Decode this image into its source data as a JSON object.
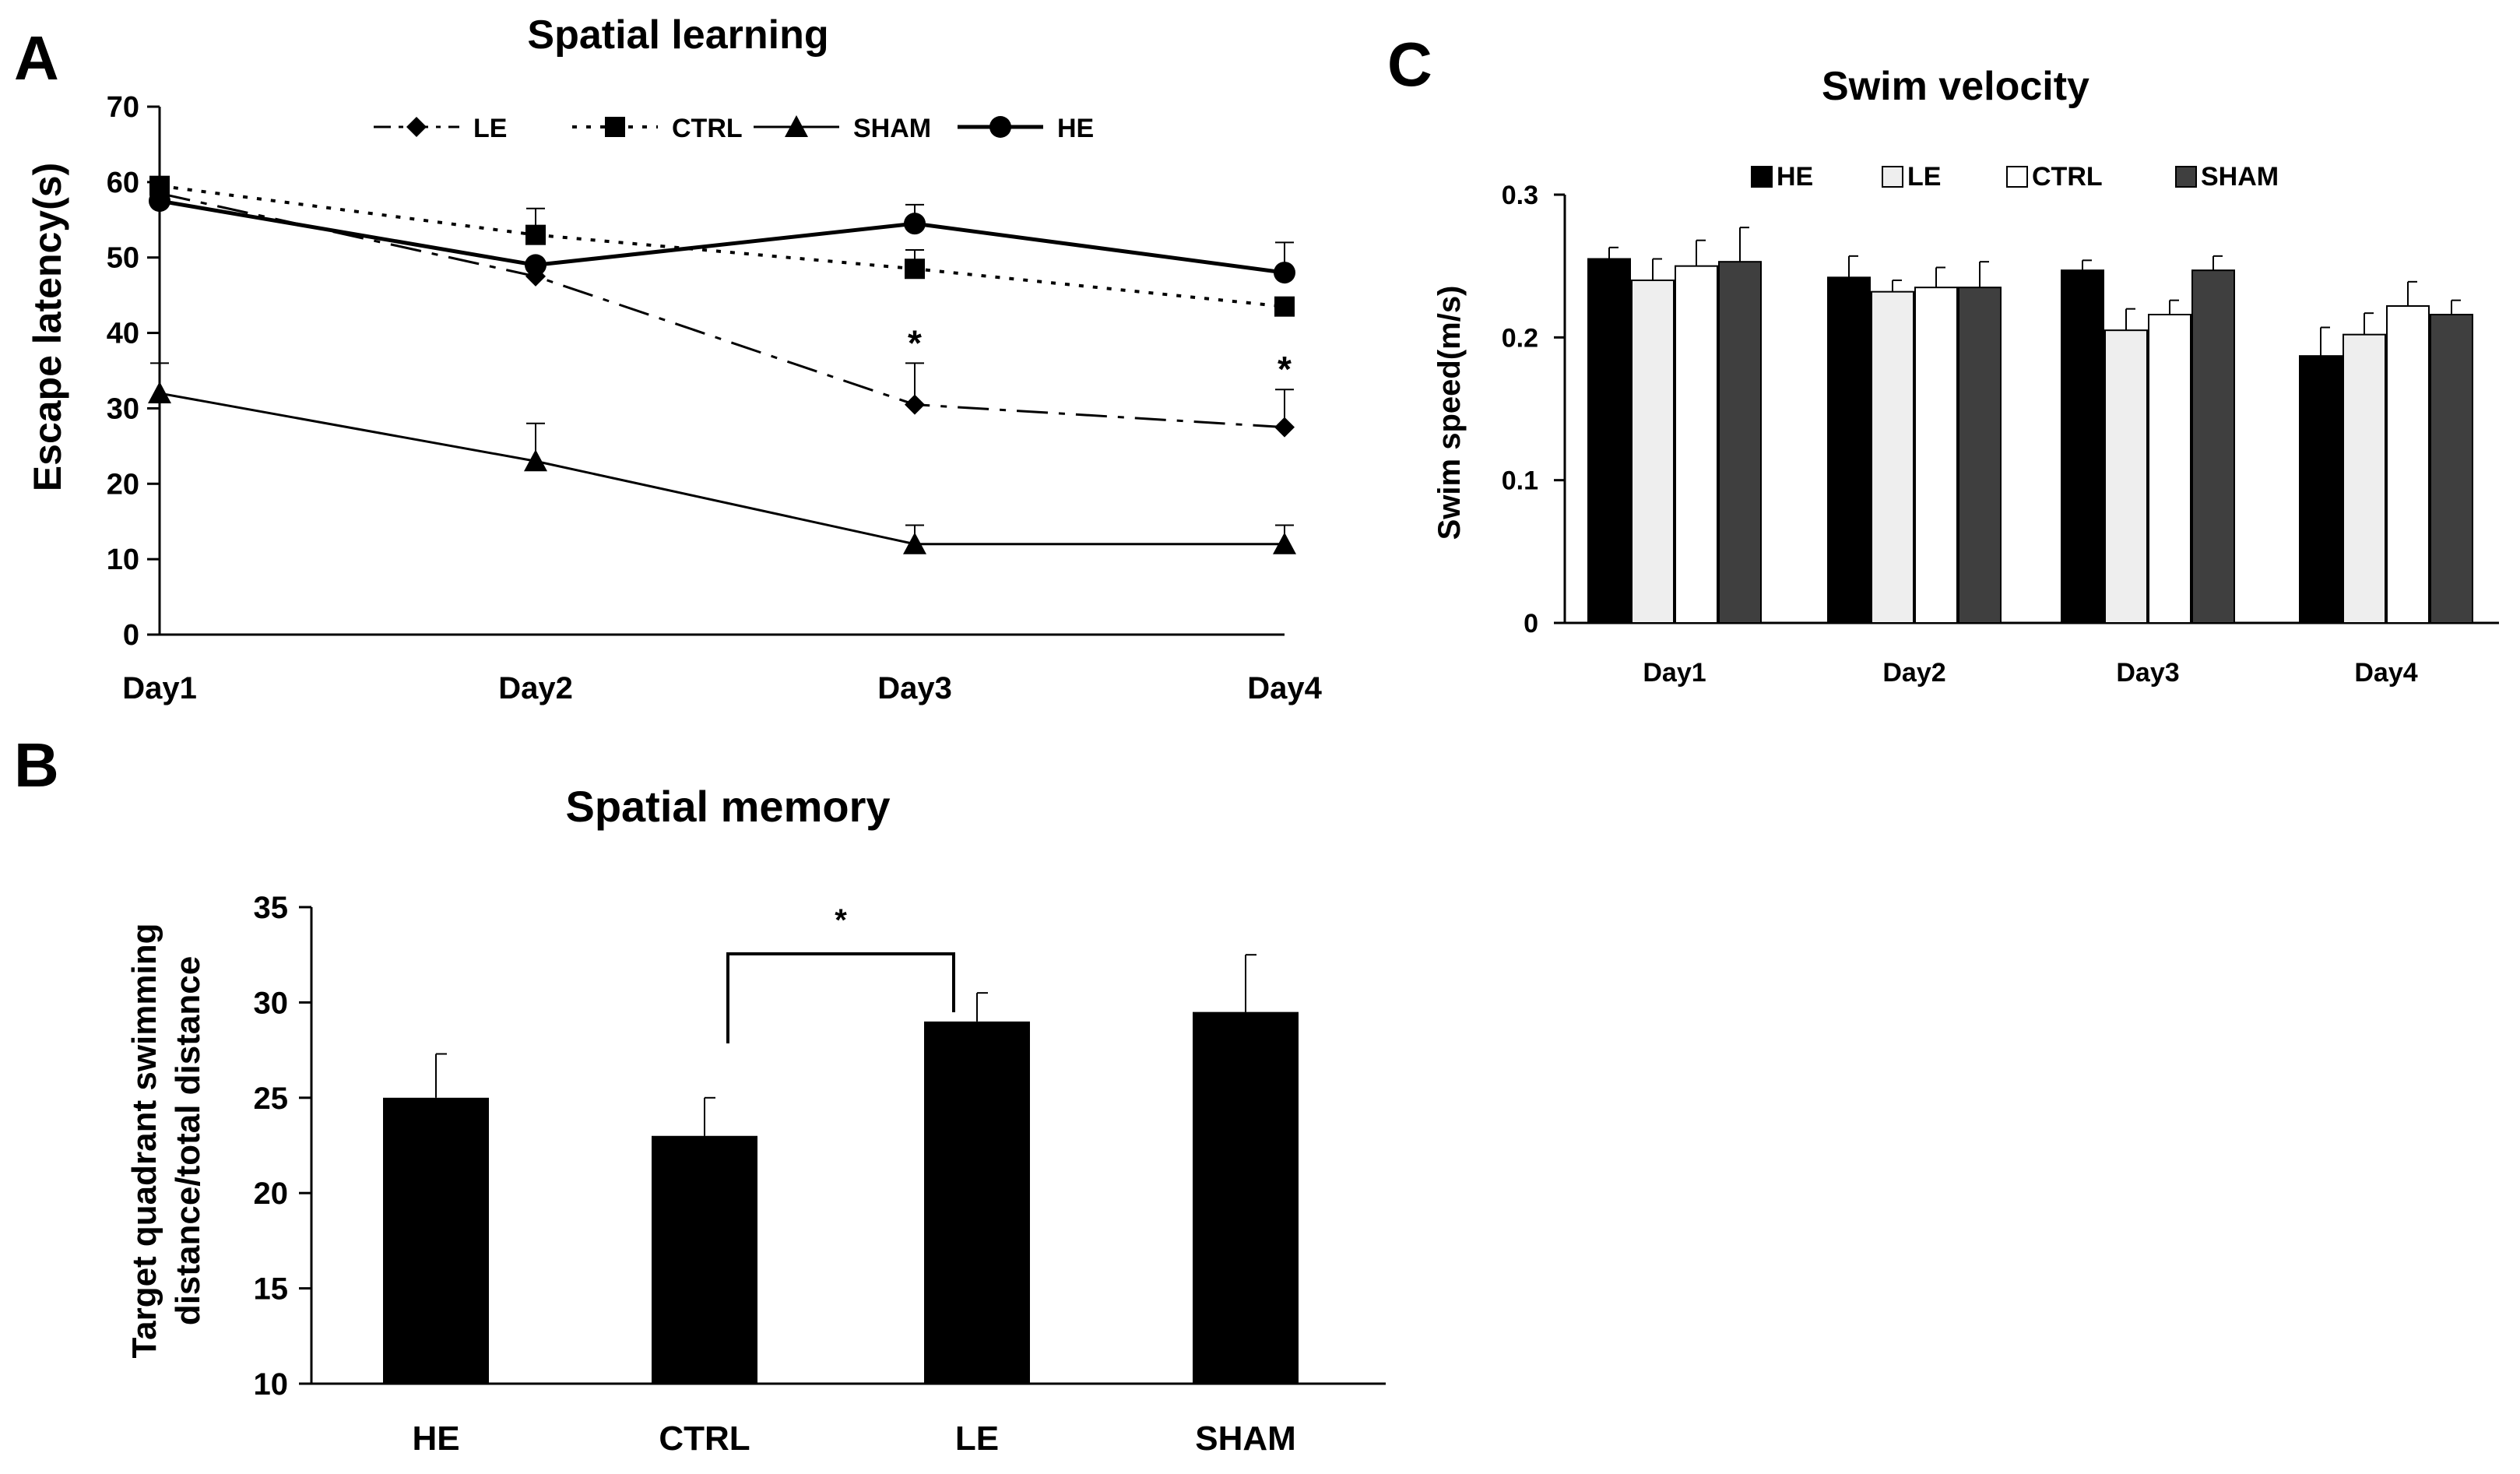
{
  "colors": {
    "ink": "#000000",
    "white": "#ffffff",
    "light": "#eeeeee",
    "dark": "#3f3f3f"
  },
  "chart_data": [
    {
      "panel": "A",
      "type": "line",
      "title": "Spatial learning",
      "xlabel": "",
      "ylabel": "Escape latency(s)",
      "categories": [
        "Day1",
        "Day2",
        "Day3",
        "Day4"
      ],
      "ylim": [
        0,
        70
      ],
      "yticks": [
        "0",
        "10",
        "20",
        "30",
        "40",
        "50",
        "60",
        "70"
      ],
      "series": [
        {
          "name": "LE",
          "marker": "diamond",
          "dash": "dashdot",
          "values": [
            58.5,
            47.5,
            30.5,
            27.5
          ],
          "errors": [
            0,
            0,
            5.5,
            5
          ]
        },
        {
          "name": "CTRL",
          "marker": "square",
          "dash": "dotted",
          "values": [
            59.5,
            53,
            48.5,
            43.5
          ],
          "errors": [
            0,
            3.5,
            2.5,
            0
          ]
        },
        {
          "name": "SHAM",
          "marker": "triangle",
          "dash": "solid",
          "values": [
            32,
            23,
            12,
            12
          ],
          "errors": [
            4,
            5,
            2.5,
            2.5
          ]
        },
        {
          "name": "HE",
          "marker": "circle",
          "dash": "solid",
          "values": [
            57.5,
            49,
            54.5,
            48
          ],
          "errors": [
            0,
            0,
            2.5,
            4
          ]
        }
      ],
      "annotations": [
        {
          "text": "*",
          "category": "Day3"
        },
        {
          "text": "*",
          "category": "Day4"
        }
      ]
    },
    {
      "panel": "B",
      "type": "bar",
      "title": "Spatial memory",
      "ylabel": "Target quadrant swimming distance/total distance",
      "categories": [
        "HE",
        "CTRL",
        "LE",
        "SHAM"
      ],
      "values": [
        25,
        23,
        29,
        29.5
      ],
      "errors": [
        2.3,
        2,
        1.5,
        3
      ],
      "ylim": [
        10,
        35
      ],
      "yticks": [
        "10",
        "15",
        "20",
        "25",
        "30",
        "35"
      ],
      "significance": {
        "from": "CTRL",
        "to": "LE",
        "text": "*"
      }
    },
    {
      "panel": "C",
      "type": "bar",
      "title": "Swim velocity",
      "ylabel": "Swim speed(m/s)",
      "categories": [
        "Day1",
        "Day2",
        "Day3",
        "Day4"
      ],
      "ylim": [
        0,
        0.3
      ],
      "yticks": [
        "0",
        "0.1",
        "0.2",
        "0.3"
      ],
      "series": [
        {
          "name": "HE",
          "fill": "#000000",
          "values": [
            0.255,
            0.242,
            0.247,
            0.187
          ],
          "errors": [
            0.008,
            0.015,
            0.007,
            0.02
          ]
        },
        {
          "name": "LE",
          "fill": "#eeeeee",
          "values": [
            0.24,
            0.232,
            0.205,
            0.202
          ],
          "errors": [
            0.015,
            0.008,
            0.015,
            0.015
          ]
        },
        {
          "name": "CTRL",
          "fill": "#ffffff",
          "values": [
            0.25,
            0.235,
            0.216,
            0.222
          ],
          "errors": [
            0.018,
            0.014,
            0.01,
            0.017
          ]
        },
        {
          "name": "SHAM",
          "fill": "#3f3f3f",
          "values": [
            0.253,
            0.235,
            0.247,
            0.216
          ],
          "errors": [
            0.024,
            0.018,
            0.01,
            0.01
          ]
        }
      ]
    }
  ]
}
